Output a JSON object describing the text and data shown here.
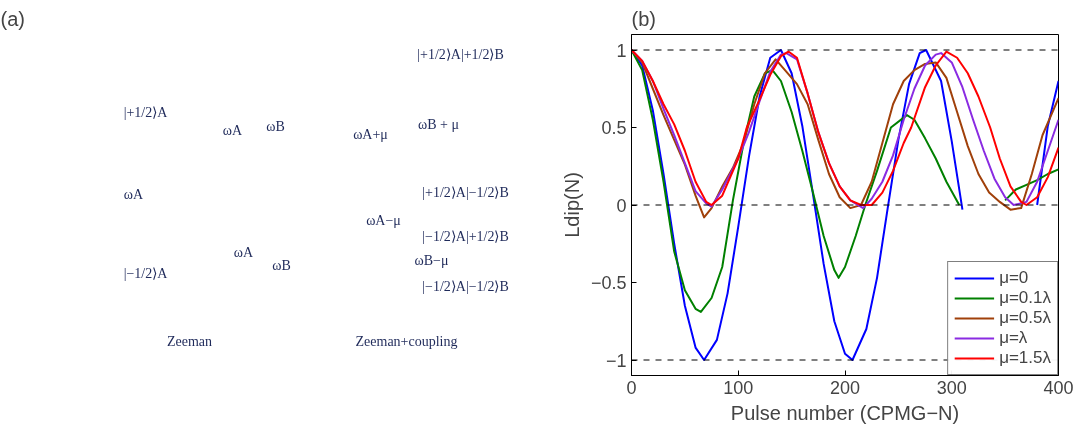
{
  "chart_data": [
    {
      "type": "other",
      "title": "(a)",
      "annotations": [
        "|+1/2⟩A",
        "|−1/2⟩A",
        "ωA",
        "ωA",
        "ωB",
        "ωA",
        "ωB",
        "ωA+μ",
        "ωB + μ",
        "ωA−μ",
        "ωB−μ",
        "|+1/2⟩A|+1/2⟩B",
        "|+1/2⟩A|−1/2⟩B",
        "|−1/2⟩A|+1/2⟩B",
        "|−1/2⟩A|−1/2⟩B",
        "Zeeman",
        "Zeeman+coupling"
      ]
    },
    {
      "type": "line",
      "title": "(b)",
      "xlabel": "Pulse number (CPMG−N)",
      "ylabel": "Ldip(N)",
      "xlim": [
        0,
        400
      ],
      "ylim": [
        -1.1,
        1.1
      ],
      "xticks": [
        0,
        100,
        200,
        300,
        400
      ],
      "yticks": [
        -1,
        -0.5,
        0,
        0.5,
        1
      ],
      "grid": false,
      "legend": "bottom right",
      "line_style": "solid",
      "marker": "none",
      "ref_lines": [
        {
          "axis": "y",
          "value": 1,
          "color": "#000000",
          "line_style": "dashed"
        },
        {
          "axis": "y",
          "value": 0,
          "color": "#000000",
          "line_style": "dashed"
        },
        {
          "axis": "y",
          "value": -1,
          "color": "#000000",
          "line_style": "dashed"
        }
      ],
      "series": [
        {
          "name": "μ=0",
          "color": "#0000ff",
          "x": [
            0,
            10,
            20,
            30,
            40,
            50,
            60,
            68,
            80,
            90,
            100,
            110,
            120,
            130,
            140,
            150,
            160,
            170,
            180,
            190,
            200,
            207,
            220,
            230,
            240,
            250,
            260,
            270,
            276,
            290,
            300,
            310,
            320,
            380,
            390,
            400
          ],
          "values": [
            1,
            0.9,
            0.61,
            0.2,
            -0.25,
            -0.65,
            -0.92,
            -1,
            -0.87,
            -0.57,
            -0.14,
            0.31,
            0.7,
            0.95,
            1,
            0.85,
            0.51,
            0.07,
            -0.38,
            -0.75,
            -0.96,
            -1,
            -0.8,
            -0.47,
            -0.02,
            0.42,
            0.78,
            0.98,
            1,
            0.8,
            0.41,
            -0.03,
            null,
            0,
            0.51,
            0.8
          ]
        },
        {
          "name": "μ=0.1λ",
          "color": "#008000",
          "x": [
            0,
            10,
            20,
            30,
            40,
            50,
            60,
            65,
            75,
            85,
            95,
            105,
            115,
            125,
            132,
            140,
            150,
            160,
            170,
            180,
            190,
            194,
            200,
            210,
            219,
            230,
            243,
            258,
            265,
            275,
            285,
            295,
            307,
            320,
            350,
            360,
            370,
            380,
            390,
            400
          ],
          "values": [
            1,
            0.87,
            0.55,
            0.15,
            -0.3,
            -0.55,
            -0.67,
            -0.69,
            -0.6,
            -0.4,
            0.03,
            0.4,
            0.7,
            0.85,
            0.87,
            0.8,
            0.6,
            0.35,
            0.08,
            -0.2,
            -0.42,
            -0.47,
            -0.4,
            -0.2,
            0,
            0.22,
            0.5,
            0.58,
            0.55,
            0.43,
            0.3,
            0.15,
            0,
            null,
            0.03,
            0.1,
            0.13,
            0.16,
            0.2,
            0.23
          ]
        },
        {
          "name": "μ=0.5λ",
          "color": "#a0400a",
          "x": [
            0,
            10,
            20,
            30,
            40,
            50,
            60,
            68,
            75,
            85,
            95,
            105,
            115,
            125,
            135,
            145,
            155,
            165,
            175,
            185,
            195,
            205,
            215,
            225,
            235,
            245,
            255,
            265,
            275,
            285,
            295,
            305,
            315,
            325,
            335,
            345,
            355,
            365,
            375,
            385,
            400
          ],
          "values": [
            1,
            0.92,
            0.75,
            0.58,
            0.42,
            0.26,
            0.06,
            -0.08,
            -0.02,
            0.12,
            0.24,
            0.4,
            0.65,
            0.85,
            0.94,
            0.86,
            0.78,
            0.65,
            0.42,
            0.2,
            0.05,
            -0.02,
            0,
            0.15,
            0.4,
            0.65,
            0.8,
            0.87,
            0.91,
            0.92,
            0.82,
            0.6,
            0.38,
            0.2,
            0.08,
            0.02,
            -0.03,
            -0.02,
            0.2,
            0.45,
            0.69
          ]
        },
        {
          "name": "μ=λ",
          "color": "#8a2be2",
          "x": [
            0,
            10,
            20,
            30,
            40,
            50,
            60,
            70,
            75,
            85,
            100,
            110,
            120,
            130,
            140,
            145,
            155,
            165,
            175,
            185,
            195,
            205,
            217,
            225,
            235,
            245,
            255,
            265,
            275,
            285,
            290,
            300,
            310,
            320,
            330,
            340,
            350,
            358,
            370,
            380,
            390,
            400
          ],
          "values": [
            1,
            0.93,
            0.8,
            0.62,
            0.45,
            0.27,
            0.09,
            0.01,
            -0.01,
            0.1,
            0.3,
            0.47,
            0.67,
            0.86,
            0.97,
            0.98,
            0.94,
            0.72,
            0.47,
            0.27,
            0.12,
            0.03,
            -0.02,
            0.04,
            0.15,
            0.32,
            0.55,
            0.75,
            0.9,
            0.97,
            0.98,
            0.92,
            0.76,
            0.55,
            0.35,
            0.17,
            0.05,
            0,
            0.02,
            0.15,
            0.35,
            0.55
          ]
        },
        {
          "name": "μ=1.5λ",
          "color": "#ff0000",
          "x": [
            0,
            10,
            20,
            30,
            40,
            50,
            60,
            70,
            75,
            85,
            100,
            108,
            120,
            130,
            140,
            147,
            155,
            165,
            175,
            185,
            195,
            205,
            215,
            225,
            235,
            245,
            255,
            262,
            275,
            285,
            295,
            305,
            315,
            325,
            336,
            345,
            355,
            365,
            370,
            380,
            390,
            400
          ],
          "values": [
            1,
            0.93,
            0.8,
            0.65,
            0.52,
            0.35,
            0.15,
            0.02,
            0,
            0.06,
            0.3,
            0.5,
            0.68,
            0.84,
            0.96,
            0.99,
            0.95,
            0.72,
            0.47,
            0.27,
            0.12,
            0.03,
            0,
            0,
            0.08,
            0.22,
            0.4,
            0.5,
            0.76,
            0.9,
            0.99,
            0.95,
            0.85,
            0.7,
            0.5,
            0.3,
            0.12,
            0.02,
            0,
            0.05,
            0.18,
            0.37
          ]
        }
      ]
    }
  ]
}
